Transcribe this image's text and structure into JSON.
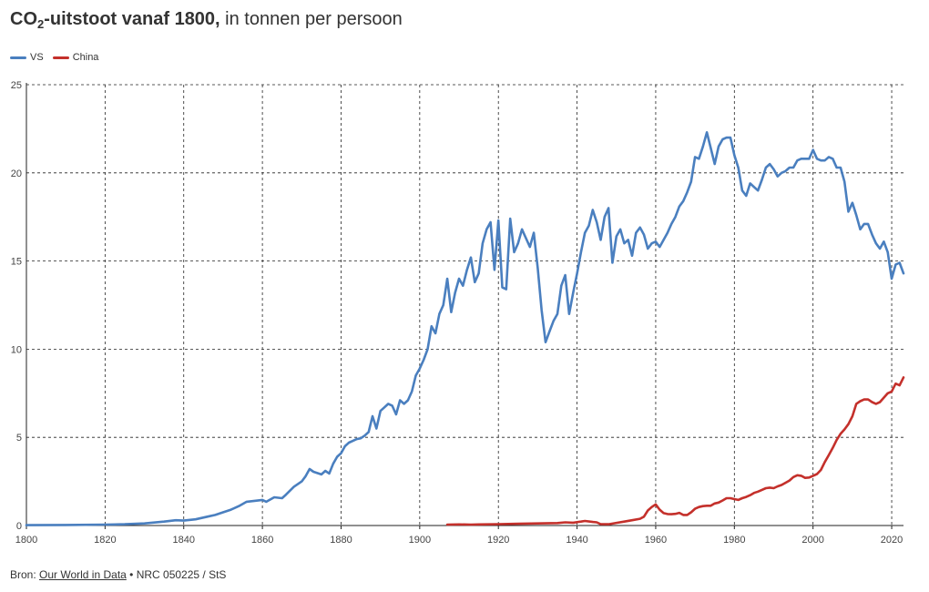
{
  "title": {
    "main": "CO",
    "sub": "2",
    "rest": "-uitstoot vanaf 1800,",
    "suffix": " in tonnen per persoon"
  },
  "footer": {
    "prefix": "Bron: ",
    "source_link": "Our World in Data",
    "credit": " • NRC 050225 / StS"
  },
  "colors": {
    "VS": "#4a7fbf",
    "China": "#c4302b"
  },
  "chart_data": {
    "type": "line",
    "title": "CO2-uitstoot vanaf 1800, in tonnen per persoon",
    "xlabel": "",
    "ylabel": "",
    "xlim": [
      1800,
      2023
    ],
    "ylim": [
      0,
      25
    ],
    "x_ticks": [
      1800,
      1820,
      1840,
      1860,
      1880,
      1900,
      1920,
      1940,
      1960,
      1980,
      2000,
      2020
    ],
    "y_ticks": [
      0,
      5,
      10,
      15,
      20,
      25
    ],
    "grid": true,
    "legend_position": "top-left",
    "series": [
      {
        "name": "VS",
        "color": "#4a7fbf",
        "points": [
          [
            1800,
            0.02
          ],
          [
            1810,
            0.03
          ],
          [
            1820,
            0.05
          ],
          [
            1825,
            0.07
          ],
          [
            1830,
            0.12
          ],
          [
            1835,
            0.22
          ],
          [
            1838,
            0.3
          ],
          [
            1840,
            0.28
          ],
          [
            1843,
            0.35
          ],
          [
            1846,
            0.5
          ],
          [
            1848,
            0.6
          ],
          [
            1850,
            0.75
          ],
          [
            1852,
            0.9
          ],
          [
            1854,
            1.1
          ],
          [
            1856,
            1.35
          ],
          [
            1858,
            1.4
          ],
          [
            1860,
            1.45
          ],
          [
            1861,
            1.35
          ],
          [
            1863,
            1.6
          ],
          [
            1865,
            1.55
          ],
          [
            1866,
            1.75
          ],
          [
            1868,
            2.2
          ],
          [
            1870,
            2.5
          ],
          [
            1871,
            2.8
          ],
          [
            1872,
            3.2
          ],
          [
            1873,
            3.05
          ],
          [
            1875,
            2.9
          ],
          [
            1876,
            3.1
          ],
          [
            1877,
            2.95
          ],
          [
            1878,
            3.5
          ],
          [
            1879,
            3.9
          ],
          [
            1880,
            4.1
          ],
          [
            1881,
            4.5
          ],
          [
            1882,
            4.7
          ],
          [
            1883,
            4.8
          ],
          [
            1884,
            4.9
          ],
          [
            1885,
            4.95
          ],
          [
            1886,
            5.1
          ],
          [
            1887,
            5.3
          ],
          [
            1888,
            6.2
          ],
          [
            1889,
            5.5
          ],
          [
            1890,
            6.5
          ],
          [
            1891,
            6.7
          ],
          [
            1892,
            6.9
          ],
          [
            1893,
            6.8
          ],
          [
            1894,
            6.3
          ],
          [
            1895,
            7.1
          ],
          [
            1896,
            6.9
          ],
          [
            1897,
            7.1
          ],
          [
            1898,
            7.6
          ],
          [
            1899,
            8.5
          ],
          [
            1900,
            8.9
          ],
          [
            1901,
            9.4
          ],
          [
            1902,
            10.0
          ],
          [
            1903,
            11.3
          ],
          [
            1904,
            10.9
          ],
          [
            1905,
            12.0
          ],
          [
            1906,
            12.5
          ],
          [
            1907,
            14.0
          ],
          [
            1908,
            12.1
          ],
          [
            1909,
            13.2
          ],
          [
            1910,
            14.0
          ],
          [
            1911,
            13.6
          ],
          [
            1912,
            14.5
          ],
          [
            1913,
            15.2
          ],
          [
            1914,
            13.8
          ],
          [
            1915,
            14.3
          ],
          [
            1916,
            16.0
          ],
          [
            1917,
            16.8
          ],
          [
            1918,
            17.2
          ],
          [
            1919,
            14.5
          ],
          [
            1920,
            17.3
          ],
          [
            1921,
            13.5
          ],
          [
            1922,
            13.4
          ],
          [
            1923,
            17.4
          ],
          [
            1924,
            15.5
          ],
          [
            1925,
            16.0
          ],
          [
            1926,
            16.8
          ],
          [
            1927,
            16.3
          ],
          [
            1928,
            15.8
          ],
          [
            1929,
            16.6
          ],
          [
            1930,
            14.6
          ],
          [
            1931,
            12.2
          ],
          [
            1932,
            10.4
          ],
          [
            1933,
            11.0
          ],
          [
            1934,
            11.6
          ],
          [
            1935,
            12.0
          ],
          [
            1936,
            13.6
          ],
          [
            1937,
            14.2
          ],
          [
            1938,
            12.0
          ],
          [
            1939,
            13.2
          ],
          [
            1940,
            14.3
          ],
          [
            1941,
            15.5
          ],
          [
            1942,
            16.6
          ],
          [
            1943,
            17.0
          ],
          [
            1944,
            17.9
          ],
          [
            1945,
            17.2
          ],
          [
            1946,
            16.2
          ],
          [
            1947,
            17.5
          ],
          [
            1948,
            18.0
          ],
          [
            1949,
            14.9
          ],
          [
            1950,
            16.4
          ],
          [
            1951,
            16.8
          ],
          [
            1952,
            16.0
          ],
          [
            1953,
            16.2
          ],
          [
            1954,
            15.3
          ],
          [
            1955,
            16.6
          ],
          [
            1956,
            16.9
          ],
          [
            1957,
            16.5
          ],
          [
            1958,
            15.7
          ],
          [
            1959,
            16.0
          ],
          [
            1960,
            16.1
          ],
          [
            1961,
            15.8
          ],
          [
            1962,
            16.2
          ],
          [
            1963,
            16.6
          ],
          [
            1964,
            17.1
          ],
          [
            1965,
            17.5
          ],
          [
            1966,
            18.1
          ],
          [
            1967,
            18.4
          ],
          [
            1968,
            18.9
          ],
          [
            1969,
            19.5
          ],
          [
            1970,
            20.9
          ],
          [
            1971,
            20.8
          ],
          [
            1972,
            21.5
          ],
          [
            1973,
            22.3
          ],
          [
            1974,
            21.4
          ],
          [
            1975,
            20.5
          ],
          [
            1976,
            21.5
          ],
          [
            1977,
            21.9
          ],
          [
            1978,
            22.0
          ],
          [
            1979,
            22.0
          ],
          [
            1980,
            21.0
          ],
          [
            1981,
            20.3
          ],
          [
            1982,
            19.0
          ],
          [
            1983,
            18.7
          ],
          [
            1984,
            19.4
          ],
          [
            1985,
            19.2
          ],
          [
            1986,
            19.0
          ],
          [
            1987,
            19.6
          ],
          [
            1988,
            20.3
          ],
          [
            1989,
            20.5
          ],
          [
            1990,
            20.2
          ],
          [
            1991,
            19.8
          ],
          [
            1992,
            20.0
          ],
          [
            1993,
            20.1
          ],
          [
            1994,
            20.3
          ],
          [
            1995,
            20.3
          ],
          [
            1996,
            20.7
          ],
          [
            1997,
            20.8
          ],
          [
            1998,
            20.8
          ],
          [
            1999,
            20.8
          ],
          [
            2000,
            21.3
          ],
          [
            2001,
            20.8
          ],
          [
            2002,
            20.7
          ],
          [
            2003,
            20.7
          ],
          [
            2004,
            20.9
          ],
          [
            2005,
            20.8
          ],
          [
            2006,
            20.3
          ],
          [
            2007,
            20.3
          ],
          [
            2008,
            19.5
          ],
          [
            2009,
            17.8
          ],
          [
            2010,
            18.3
          ],
          [
            2011,
            17.6
          ],
          [
            2012,
            16.8
          ],
          [
            2013,
            17.1
          ],
          [
            2014,
            17.1
          ],
          [
            2015,
            16.5
          ],
          [
            2016,
            16.0
          ],
          [
            2017,
            15.7
          ],
          [
            2018,
            16.1
          ],
          [
            2019,
            15.5
          ],
          [
            2020,
            14.0
          ],
          [
            2021,
            14.8
          ],
          [
            2022,
            14.9
          ],
          [
            2023,
            14.3
          ]
        ]
      },
      {
        "name": "China",
        "color": "#c4302b",
        "points": [
          [
            1907,
            0.05
          ],
          [
            1910,
            0.06
          ],
          [
            1913,
            0.05
          ],
          [
            1915,
            0.06
          ],
          [
            1920,
            0.08
          ],
          [
            1925,
            0.1
          ],
          [
            1930,
            0.12
          ],
          [
            1935,
            0.14
          ],
          [
            1937,
            0.18
          ],
          [
            1939,
            0.16
          ],
          [
            1941,
            0.22
          ],
          [
            1942,
            0.26
          ],
          [
            1944,
            0.2
          ],
          [
            1945,
            0.18
          ],
          [
            1946,
            0.08
          ],
          [
            1948,
            0.07
          ],
          [
            1950,
            0.15
          ],
          [
            1952,
            0.22
          ],
          [
            1954,
            0.3
          ],
          [
            1956,
            0.38
          ],
          [
            1957,
            0.5
          ],
          [
            1958,
            0.85
          ],
          [
            1959,
            1.05
          ],
          [
            1960,
            1.2
          ],
          [
            1961,
            0.9
          ],
          [
            1962,
            0.7
          ],
          [
            1963,
            0.65
          ],
          [
            1964,
            0.64
          ],
          [
            1965,
            0.66
          ],
          [
            1966,
            0.72
          ],
          [
            1967,
            0.6
          ],
          [
            1968,
            0.6
          ],
          [
            1969,
            0.75
          ],
          [
            1970,
            0.95
          ],
          [
            1971,
            1.05
          ],
          [
            1972,
            1.1
          ],
          [
            1973,
            1.12
          ],
          [
            1974,
            1.12
          ],
          [
            1975,
            1.25
          ],
          [
            1976,
            1.3
          ],
          [
            1977,
            1.42
          ],
          [
            1978,
            1.55
          ],
          [
            1979,
            1.55
          ],
          [
            1980,
            1.5
          ],
          [
            1981,
            1.45
          ],
          [
            1982,
            1.55
          ],
          [
            1983,
            1.62
          ],
          [
            1984,
            1.72
          ],
          [
            1985,
            1.85
          ],
          [
            1986,
            1.92
          ],
          [
            1987,
            2.02
          ],
          [
            1988,
            2.12
          ],
          [
            1989,
            2.15
          ],
          [
            1990,
            2.12
          ],
          [
            1991,
            2.22
          ],
          [
            1992,
            2.3
          ],
          [
            1993,
            2.42
          ],
          [
            1994,
            2.55
          ],
          [
            1995,
            2.75
          ],
          [
            1996,
            2.85
          ],
          [
            1997,
            2.82
          ],
          [
            1998,
            2.7
          ],
          [
            1999,
            2.72
          ],
          [
            2000,
            2.82
          ],
          [
            2001,
            2.92
          ],
          [
            2002,
            3.15
          ],
          [
            2003,
            3.6
          ],
          [
            2004,
            4.0
          ],
          [
            2005,
            4.4
          ],
          [
            2006,
            4.85
          ],
          [
            2007,
            5.2
          ],
          [
            2008,
            5.45
          ],
          [
            2009,
            5.75
          ],
          [
            2010,
            6.2
          ],
          [
            2011,
            6.9
          ],
          [
            2012,
            7.05
          ],
          [
            2013,
            7.15
          ],
          [
            2014,
            7.15
          ],
          [
            2015,
            7.0
          ],
          [
            2016,
            6.9
          ],
          [
            2017,
            7.0
          ],
          [
            2018,
            7.25
          ],
          [
            2019,
            7.5
          ],
          [
            2020,
            7.6
          ],
          [
            2021,
            8.05
          ],
          [
            2022,
            7.95
          ],
          [
            2023,
            8.4
          ]
        ]
      }
    ]
  }
}
